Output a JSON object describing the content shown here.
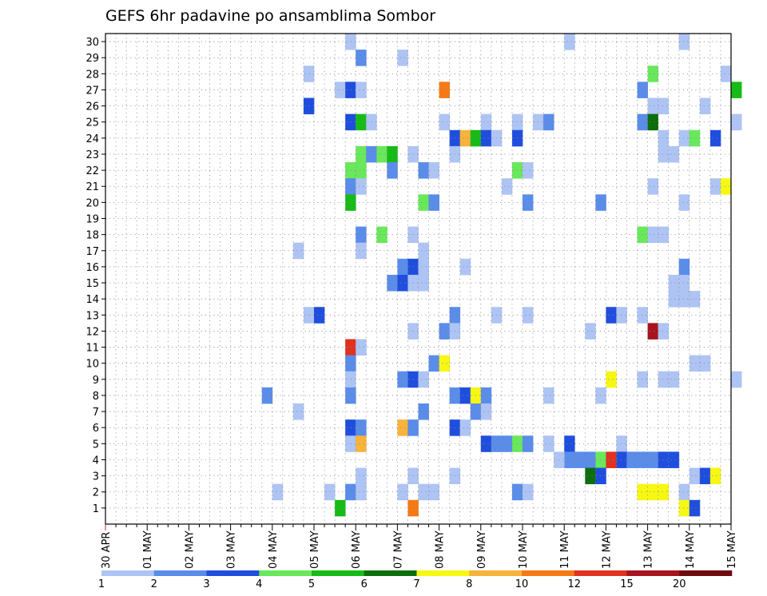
{
  "chart_data": {
    "type": "heatmap",
    "title": "GEFS 6hr padavine po ansamblima Sombor",
    "x_tick_labels": [
      "30 APR",
      "01 MAY",
      "02 MAY",
      "03 MAY",
      "04 MAY",
      "05 MAY",
      "06 MAY",
      "07 MAY",
      "08 MAY",
      "09 MAY",
      "10 MAY",
      "11 MAY",
      "12 MAY",
      "13 MAY",
      "14 MAY",
      "15 MAY"
    ],
    "x_step_hours": 6,
    "y_tick_labels": [
      "1",
      "2",
      "3",
      "4",
      "5",
      "6",
      "7",
      "8",
      "9",
      "10",
      "11",
      "12",
      "13",
      "14",
      "15",
      "16",
      "17",
      "18",
      "19",
      "20",
      "21",
      "22",
      "23",
      "24",
      "25",
      "26",
      "27",
      "28",
      "29",
      "30"
    ],
    "grid": true,
    "legend": {
      "placement": "bottom",
      "labels": [
        "1",
        "2",
        "3",
        "4",
        "5",
        "6",
        "7",
        "8",
        "10",
        "12",
        "15",
        "20"
      ],
      "colors": [
        "#aec4f4",
        "#5a8cea",
        "#1f4ede",
        "#68e85a",
        "#17bb17",
        "#0c6e0c",
        "#f7f714",
        "#f7b33a",
        "#f57a14",
        "#e0321f",
        "#a8141d",
        "#6e0a10"
      ]
    },
    "cells": [
      {
        "m": 30,
        "t": 23,
        "c": 0
      },
      {
        "m": 30,
        "t": 44,
        "c": 0
      },
      {
        "m": 30,
        "t": 55,
        "c": 0
      },
      {
        "m": 29,
        "t": 24,
        "c": 1
      },
      {
        "m": 29,
        "t": 28,
        "c": 0
      },
      {
        "m": 28,
        "t": 19,
        "c": 0
      },
      {
        "m": 28,
        "t": 52,
        "c": 3
      },
      {
        "m": 28,
        "t": 59,
        "c": 0
      },
      {
        "m": 27,
        "t": 22,
        "c": 0
      },
      {
        "m": 27,
        "t": 23,
        "c": 2
      },
      {
        "m": 27,
        "t": 24,
        "c": 0
      },
      {
        "m": 27,
        "t": 32,
        "c": 8
      },
      {
        "m": 27,
        "t": 51,
        "c": 1
      },
      {
        "m": 27,
        "t": 60,
        "c": 4
      },
      {
        "m": 26,
        "t": 19,
        "c": 2
      },
      {
        "m": 26,
        "t": 52,
        "c": 0
      },
      {
        "m": 26,
        "t": 53,
        "c": 0
      },
      {
        "m": 26,
        "t": 57,
        "c": 0
      },
      {
        "m": 25,
        "t": 23,
        "c": 2
      },
      {
        "m": 25,
        "t": 24,
        "c": 4
      },
      {
        "m": 25,
        "t": 25,
        "c": 0
      },
      {
        "m": 25,
        "t": 32,
        "c": 0
      },
      {
        "m": 25,
        "t": 36,
        "c": 0
      },
      {
        "m": 25,
        "t": 39,
        "c": 0
      },
      {
        "m": 25,
        "t": 41,
        "c": 0
      },
      {
        "m": 25,
        "t": 42,
        "c": 1
      },
      {
        "m": 25,
        "t": 51,
        "c": 1
      },
      {
        "m": 25,
        "t": 52,
        "c": 5
      },
      {
        "m": 25,
        "t": 60,
        "c": 0
      },
      {
        "m": 24,
        "t": 33,
        "c": 2
      },
      {
        "m": 24,
        "t": 34,
        "c": 7
      },
      {
        "m": 24,
        "t": 35,
        "c": 4
      },
      {
        "m": 24,
        "t": 36,
        "c": 2
      },
      {
        "m": 24,
        "t": 37,
        "c": 0
      },
      {
        "m": 24,
        "t": 39,
        "c": 2
      },
      {
        "m": 24,
        "t": 53,
        "c": 0
      },
      {
        "m": 24,
        "t": 55,
        "c": 0
      },
      {
        "m": 24,
        "t": 56,
        "c": 3
      },
      {
        "m": 24,
        "t": 58,
        "c": 2
      },
      {
        "m": 23,
        "t": 24,
        "c": 3
      },
      {
        "m": 23,
        "t": 25,
        "c": 1
      },
      {
        "m": 23,
        "t": 26,
        "c": 3
      },
      {
        "m": 23,
        "t": 27,
        "c": 4
      },
      {
        "m": 23,
        "t": 29,
        "c": 0
      },
      {
        "m": 23,
        "t": 33,
        "c": 0
      },
      {
        "m": 23,
        "t": 53,
        "c": 0
      },
      {
        "m": 23,
        "t": 54,
        "c": 0
      },
      {
        "m": 22,
        "t": 23,
        "c": 3
      },
      {
        "m": 22,
        "t": 24,
        "c": 3
      },
      {
        "m": 22,
        "t": 27,
        "c": 1
      },
      {
        "m": 22,
        "t": 30,
        "c": 1
      },
      {
        "m": 22,
        "t": 31,
        "c": 0
      },
      {
        "m": 22,
        "t": 39,
        "c": 3
      },
      {
        "m": 22,
        "t": 40,
        "c": 0
      },
      {
        "m": 21,
        "t": 23,
        "c": 1
      },
      {
        "m": 21,
        "t": 24,
        "c": 0
      },
      {
        "m": 21,
        "t": 38,
        "c": 0
      },
      {
        "m": 21,
        "t": 52,
        "c": 0
      },
      {
        "m": 21,
        "t": 58,
        "c": 0
      },
      {
        "m": 21,
        "t": 59,
        "c": 6
      },
      {
        "m": 20,
        "t": 23,
        "c": 4
      },
      {
        "m": 20,
        "t": 30,
        "c": 3
      },
      {
        "m": 20,
        "t": 31,
        "c": 1
      },
      {
        "m": 20,
        "t": 40,
        "c": 1
      },
      {
        "m": 20,
        "t": 47,
        "c": 1
      },
      {
        "m": 20,
        "t": 55,
        "c": 0
      },
      {
        "m": 18,
        "t": 24,
        "c": 1
      },
      {
        "m": 18,
        "t": 26,
        "c": 3
      },
      {
        "m": 18,
        "t": 29,
        "c": 0
      },
      {
        "m": 18,
        "t": 51,
        "c": 3
      },
      {
        "m": 18,
        "t": 52,
        "c": 0
      },
      {
        "m": 18,
        "t": 53,
        "c": 0
      },
      {
        "m": 17,
        "t": 18,
        "c": 0
      },
      {
        "m": 17,
        "t": 24,
        "c": 0
      },
      {
        "m": 17,
        "t": 30,
        "c": 0
      },
      {
        "m": 16,
        "t": 28,
        "c": 1
      },
      {
        "m": 16,
        "t": 29,
        "c": 2
      },
      {
        "m": 16,
        "t": 30,
        "c": 0
      },
      {
        "m": 16,
        "t": 34,
        "c": 0
      },
      {
        "m": 16,
        "t": 55,
        "c": 1
      },
      {
        "m": 15,
        "t": 27,
        "c": 1
      },
      {
        "m": 15,
        "t": 28,
        "c": 2
      },
      {
        "m": 15,
        "t": 29,
        "c": 0
      },
      {
        "m": 15,
        "t": 30,
        "c": 0
      },
      {
        "m": 15,
        "t": 54,
        "c": 0
      },
      {
        "m": 15,
        "t": 55,
        "c": 0
      },
      {
        "m": 14,
        "t": 54,
        "c": 0
      },
      {
        "m": 14,
        "t": 55,
        "c": 0
      },
      {
        "m": 14,
        "t": 56,
        "c": 0
      },
      {
        "m": 13,
        "t": 19,
        "c": 0
      },
      {
        "m": 13,
        "t": 20,
        "c": 2
      },
      {
        "m": 13,
        "t": 33,
        "c": 1
      },
      {
        "m": 13,
        "t": 37,
        "c": 0
      },
      {
        "m": 13,
        "t": 40,
        "c": 0
      },
      {
        "m": 13,
        "t": 48,
        "c": 2
      },
      {
        "m": 13,
        "t": 49,
        "c": 0
      },
      {
        "m": 13,
        "t": 51,
        "c": 0
      },
      {
        "m": 12,
        "t": 52,
        "c": 10
      },
      {
        "m": 12,
        "t": 53,
        "c": 0
      },
      {
        "m": 12,
        "t": 29,
        "c": 0
      },
      {
        "m": 12,
        "t": 32,
        "c": 1
      },
      {
        "m": 12,
        "t": 33,
        "c": 0
      },
      {
        "m": 12,
        "t": 46,
        "c": 0
      },
      {
        "m": 11,
        "t": 23,
        "c": 9
      },
      {
        "m": 11,
        "t": 24,
        "c": 0
      },
      {
        "m": 10,
        "t": 23,
        "c": 1
      },
      {
        "m": 10,
        "t": 31,
        "c": 1
      },
      {
        "m": 10,
        "t": 32,
        "c": 6
      },
      {
        "m": 10,
        "t": 56,
        "c": 0
      },
      {
        "m": 10,
        "t": 57,
        "c": 0
      },
      {
        "m": 9,
        "t": 23,
        "c": 0
      },
      {
        "m": 9,
        "t": 28,
        "c": 1
      },
      {
        "m": 9,
        "t": 29,
        "c": 2
      },
      {
        "m": 9,
        "t": 30,
        "c": 0
      },
      {
        "m": 9,
        "t": 48,
        "c": 6
      },
      {
        "m": 9,
        "t": 51,
        "c": 0
      },
      {
        "m": 9,
        "t": 53,
        "c": 0
      },
      {
        "m": 9,
        "t": 54,
        "c": 0
      },
      {
        "m": 9,
        "t": 60,
        "c": 0
      },
      {
        "m": 8,
        "t": 15,
        "c": 1
      },
      {
        "m": 8,
        "t": 23,
        "c": 1
      },
      {
        "m": 8,
        "t": 33,
        "c": 1
      },
      {
        "m": 8,
        "t": 34,
        "c": 2
      },
      {
        "m": 8,
        "t": 35,
        "c": 6
      },
      {
        "m": 8,
        "t": 36,
        "c": 1
      },
      {
        "m": 8,
        "t": 42,
        "c": 0
      },
      {
        "m": 8,
        "t": 47,
        "c": 0
      },
      {
        "m": 7,
        "t": 18,
        "c": 0
      },
      {
        "m": 7,
        "t": 30,
        "c": 1
      },
      {
        "m": 7,
        "t": 35,
        "c": 1
      },
      {
        "m": 7,
        "t": 36,
        "c": 0
      },
      {
        "m": 6,
        "t": 23,
        "c": 2
      },
      {
        "m": 6,
        "t": 24,
        "c": 1
      },
      {
        "m": 6,
        "t": 28,
        "c": 7
      },
      {
        "m": 6,
        "t": 29,
        "c": 1
      },
      {
        "m": 6,
        "t": 33,
        "c": 2
      },
      {
        "m": 6,
        "t": 34,
        "c": 0
      },
      {
        "m": 5,
        "t": 23,
        "c": 0
      },
      {
        "m": 5,
        "t": 24,
        "c": 7
      },
      {
        "m": 5,
        "t": 36,
        "c": 2
      },
      {
        "m": 5,
        "t": 37,
        "c": 1
      },
      {
        "m": 5,
        "t": 38,
        "c": 1
      },
      {
        "m": 5,
        "t": 39,
        "c": 3
      },
      {
        "m": 5,
        "t": 40,
        "c": 1
      },
      {
        "m": 5,
        "t": 42,
        "c": 0
      },
      {
        "m": 5,
        "t": 44,
        "c": 2
      },
      {
        "m": 5,
        "t": 49,
        "c": 0
      },
      {
        "m": 4,
        "t": 44,
        "c": 1
      },
      {
        "m": 4,
        "t": 45,
        "c": 1
      },
      {
        "m": 4,
        "t": 46,
        "c": 1
      },
      {
        "m": 4,
        "t": 47,
        "c": 3
      },
      {
        "m": 4,
        "t": 48,
        "c": 9
      },
      {
        "m": 4,
        "t": 49,
        "c": 2
      },
      {
        "m": 4,
        "t": 50,
        "c": 1
      },
      {
        "m": 4,
        "t": 51,
        "c": 1
      },
      {
        "m": 4,
        "t": 52,
        "c": 1
      },
      {
        "m": 4,
        "t": 53,
        "c": 2
      },
      {
        "m": 4,
        "t": 54,
        "c": 2
      },
      {
        "m": 4,
        "t": 43,
        "c": 0
      },
      {
        "m": 3,
        "t": 24,
        "c": 0
      },
      {
        "m": 3,
        "t": 29,
        "c": 0
      },
      {
        "m": 3,
        "t": 33,
        "c": 0
      },
      {
        "m": 3,
        "t": 46,
        "c": 5
      },
      {
        "m": 3,
        "t": 47,
        "c": 2
      },
      {
        "m": 3,
        "t": 56,
        "c": 0
      },
      {
        "m": 3,
        "t": 57,
        "c": 2
      },
      {
        "m": 3,
        "t": 58,
        "c": 6
      },
      {
        "m": 2,
        "t": 16,
        "c": 0
      },
      {
        "m": 2,
        "t": 21,
        "c": 0
      },
      {
        "m": 2,
        "t": 23,
        "c": 1
      },
      {
        "m": 2,
        "t": 24,
        "c": 0
      },
      {
        "m": 2,
        "t": 28,
        "c": 0
      },
      {
        "m": 2,
        "t": 30,
        "c": 0
      },
      {
        "m": 2,
        "t": 31,
        "c": 0
      },
      {
        "m": 2,
        "t": 39,
        "c": 1
      },
      {
        "m": 2,
        "t": 40,
        "c": 0
      },
      {
        "m": 2,
        "t": 51,
        "c": 6
      },
      {
        "m": 2,
        "t": 52,
        "c": 6
      },
      {
        "m": 2,
        "t": 53,
        "c": 6
      },
      {
        "m": 2,
        "t": 55,
        "c": 0
      },
      {
        "m": 1,
        "t": 22,
        "c": 4
      },
      {
        "m": 1,
        "t": 29,
        "c": 8
      },
      {
        "m": 1,
        "t": 55,
        "c": 6
      },
      {
        "m": 1,
        "t": 56,
        "c": 2
      }
    ]
  }
}
